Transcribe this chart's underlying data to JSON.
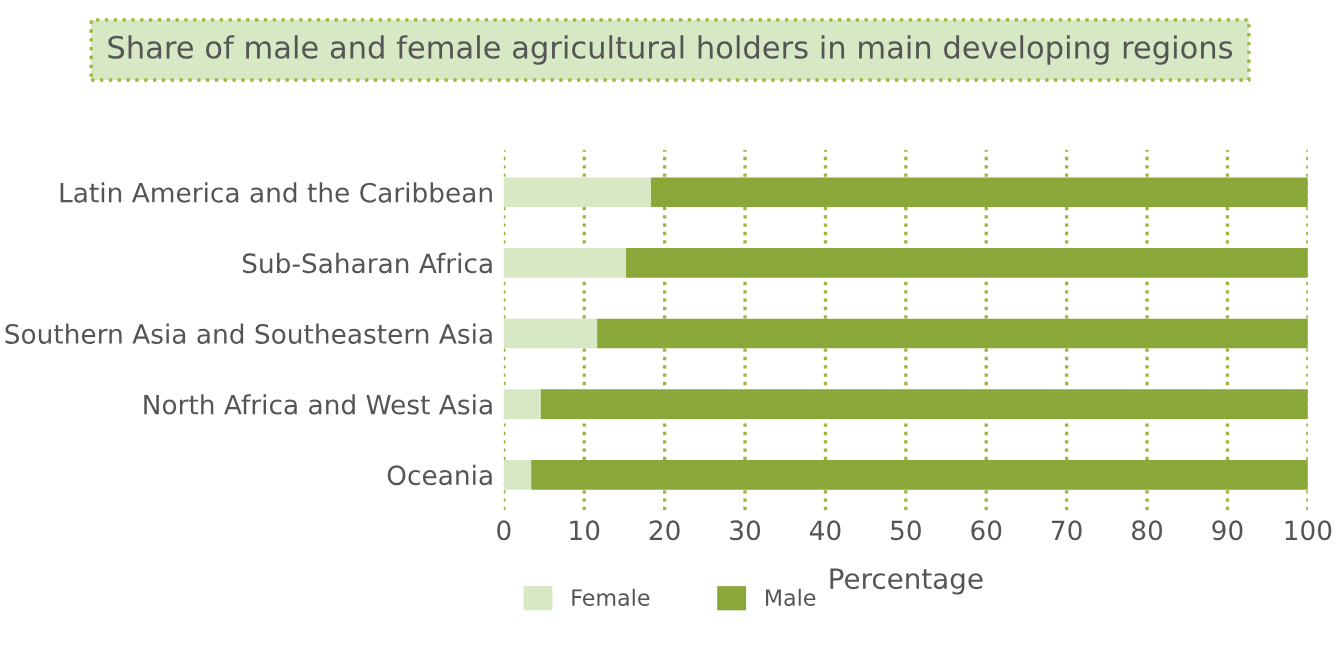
{
  "chart_data": {
    "type": "bar",
    "orientation": "horizontal",
    "stacked": true,
    "title": "Share of male and female agricultural holders in main developing regions",
    "categories": [
      "Latin America and the Caribbean",
      "Sub-Saharan Africa",
      "Southern Asia and Southeastern Asia",
      "North Africa and West Asia",
      "Oceania"
    ],
    "series": [
      {
        "name": "Female",
        "color": "#d7e8c4",
        "values": [
          18.3,
          15.2,
          11.6,
          4.6,
          3.4
        ]
      },
      {
        "name": "Male",
        "color": "#8aa83a",
        "values": [
          81.7,
          84.8,
          88.4,
          95.4,
          96.6
        ]
      }
    ],
    "xlabel": "Percentage",
    "xlim": [
      0,
      100
    ],
    "xticks": [
      0,
      10,
      20,
      30,
      40,
      50,
      60,
      70,
      80,
      90,
      100
    ],
    "grid": "x",
    "legend": "bottom"
  }
}
